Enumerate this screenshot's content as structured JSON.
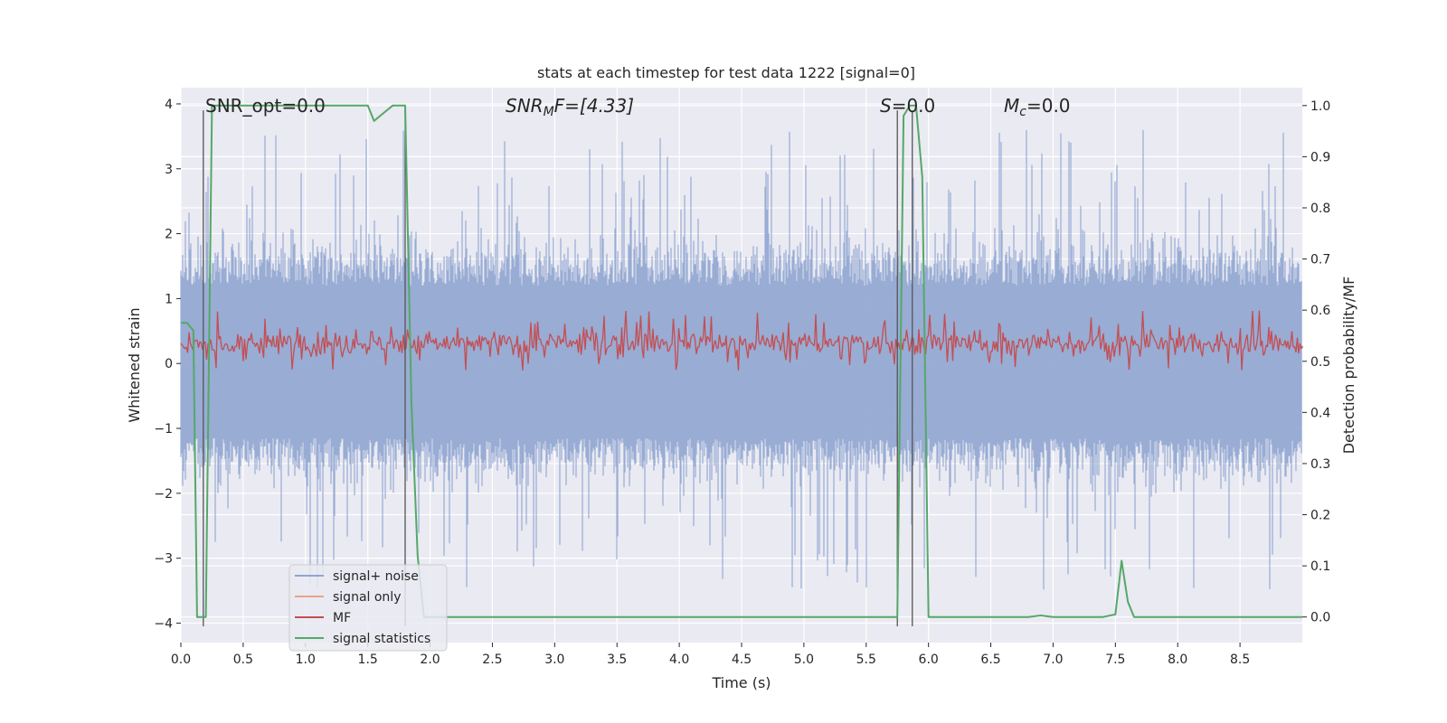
{
  "chart_data": {
    "type": "line",
    "title": "stats at each timestep for test data 1222 [signal=0]",
    "xlabel": "Time (s)",
    "ylabel_left": "Whitened strain",
    "ylabel_right": "Detection probability/MF",
    "xlim": [
      0,
      9.0
    ],
    "ylim_left": [
      -4.3,
      4.25
    ],
    "ylim_right": [
      -0.05,
      1.035
    ],
    "x_ticks": [
      "0.0",
      "0.5",
      "1.0",
      "1.5",
      "2.0",
      "2.5",
      "3.0",
      "3.5",
      "4.0",
      "4.5",
      "5.0",
      "5.5",
      "6.0",
      "6.5",
      "7.0",
      "7.5",
      "8.0",
      "8.5"
    ],
    "y_ticks_left": [
      "4",
      "3",
      "2",
      "1",
      "0",
      "−1",
      "−2",
      "−3",
      "−4"
    ],
    "y_ticks_right": [
      "1.0",
      "0.9",
      "0.8",
      "0.7",
      "0.6",
      "0.5",
      "0.4",
      "0.3",
      "0.2",
      "0.1",
      "0.0"
    ],
    "grid": true,
    "legend_position": "lower-left",
    "annotations": {
      "snr_opt": "SNR_opt=0.0",
      "snr_mf_prefix": "SNR",
      "snr_mf_sub": "M",
      "snr_mf_suffix": "F=[4.33]",
      "s_sym": "S",
      "s_val": "=0.0",
      "mc_sym": "M",
      "mc_sub": "c",
      "mc_val": "=0.0"
    },
    "series": [
      {
        "name": "signal+ noise",
        "color": "#8fa5d0",
        "kind": "noise",
        "amplitude_range": [
          -3.7,
          3.9
        ]
      },
      {
        "name": "signal only",
        "color": "#e9a38b",
        "values": []
      },
      {
        "name": "MF",
        "color": "#c44e52",
        "kind": "mf",
        "range": [
          0.0,
          1.0
        ]
      },
      {
        "name": "signal statistics",
        "color": "#55a868",
        "axis": "right",
        "x": [
          0.0,
          0.05,
          0.1,
          0.13,
          0.17,
          0.2,
          0.25,
          0.3,
          0.5,
          1.0,
          1.5,
          1.55,
          1.6,
          1.7,
          1.75,
          1.8,
          1.85,
          1.9,
          1.95,
          2.0,
          3.0,
          4.0,
          5.0,
          5.75,
          5.8,
          5.85,
          5.9,
          5.95,
          6.0,
          6.5,
          6.8,
          6.9,
          7.0,
          7.4,
          7.5,
          7.55,
          7.6,
          7.65,
          8.0,
          9.0
        ],
        "y": [
          0.575,
          0.575,
          0.56,
          0.0,
          0.0,
          0.0,
          1.0,
          1.0,
          1.0,
          1.0,
          1.0,
          0.97,
          0.98,
          1.0,
          1.0,
          1.0,
          0.42,
          0.12,
          0.0,
          0.0,
          0.0,
          0.0,
          0.0,
          0.0,
          0.98,
          1.0,
          1.0,
          0.86,
          0.0,
          0.0,
          0.0,
          0.003,
          0.0,
          0.0,
          0.005,
          0.11,
          0.03,
          0.0,
          0.0,
          0.0
        ]
      }
    ],
    "vlines": [
      0.18,
      1.8,
      5.75,
      5.87
    ]
  }
}
